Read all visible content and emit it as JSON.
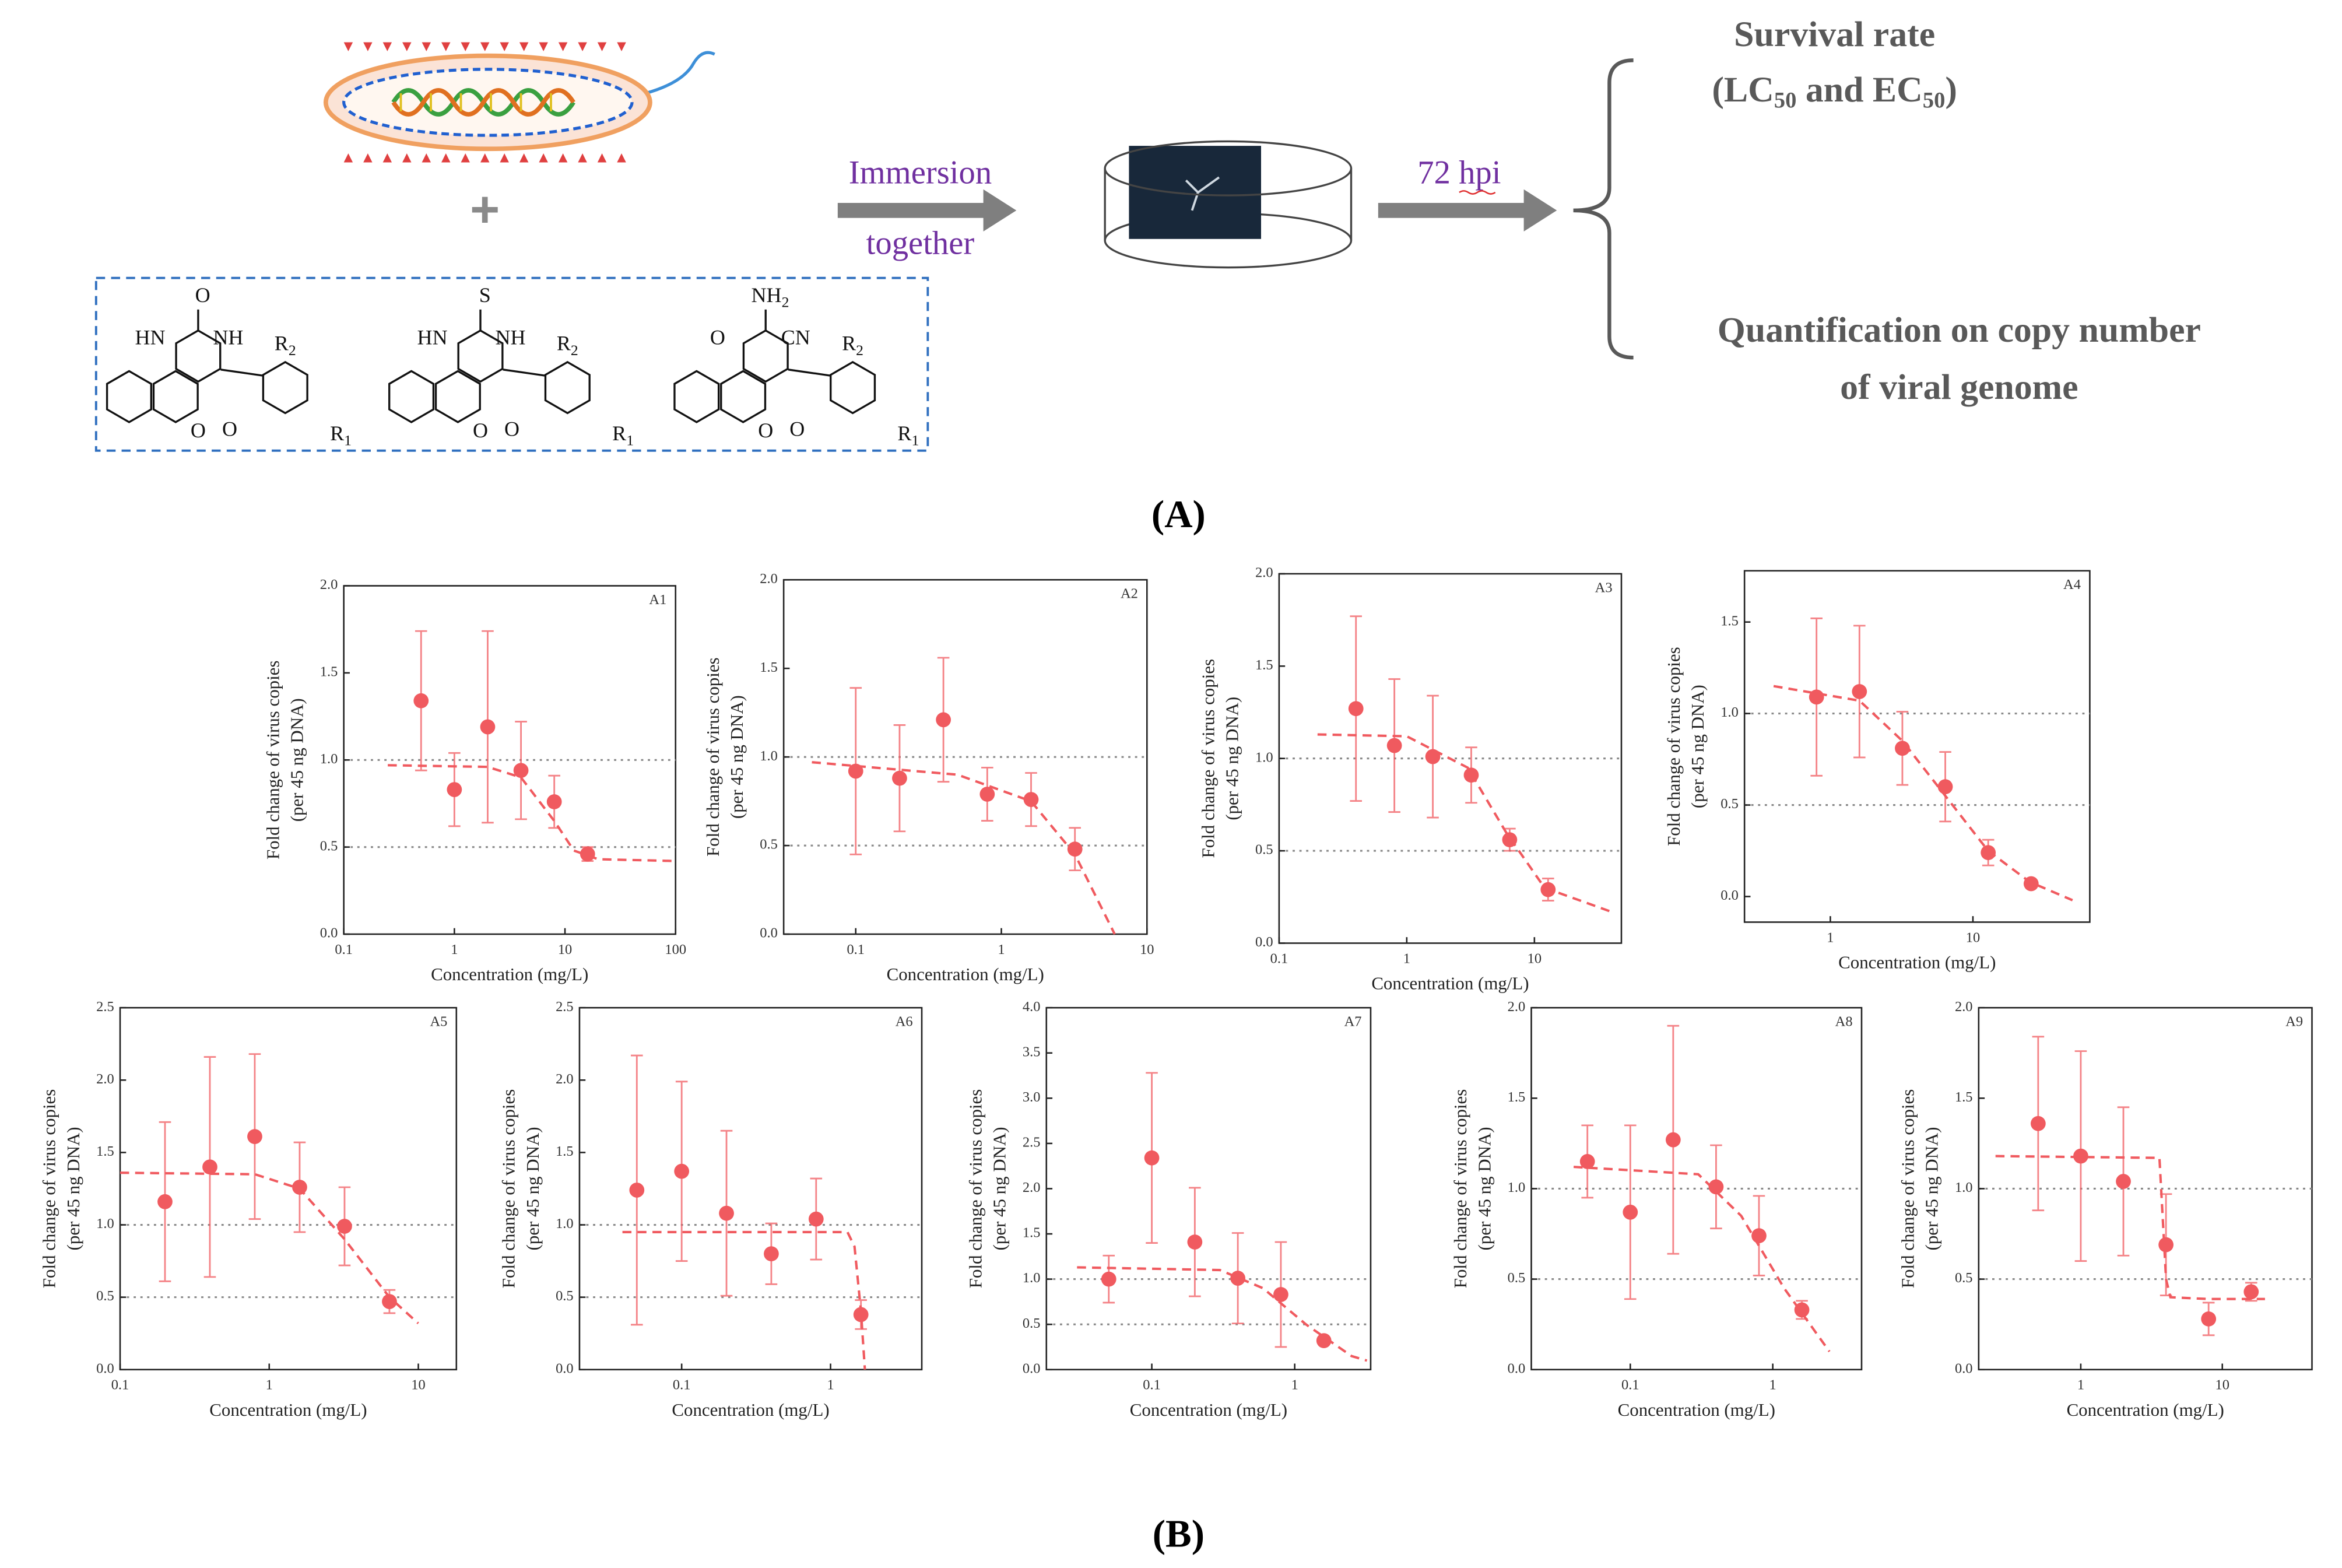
{
  "panel_a": {
    "step1": "Immersion",
    "step2": "together",
    "time": "72 hpi",
    "out1": "Survival rate",
    "out2": [
      "(LC",
      "50",
      " and EC",
      "50",
      ")"
    ],
    "out3": "Quantification on copy number",
    "out4": "of viral genome",
    "structures": [
      {
        "top": [
          "O",
          ""
        ],
        "left": "HN",
        "right": "NH",
        "ring_o": "O",
        "carbonyl": "O",
        "r2": [
          "R",
          "2"
        ],
        "r1": [
          "R",
          "1"
        ]
      },
      {
        "top": [
          "S",
          ""
        ],
        "left": "HN",
        "right": "NH",
        "ring_o": "O",
        "carbonyl": "O",
        "r2": [
          "R",
          "2"
        ],
        "r1": [
          "R",
          "1"
        ]
      },
      {
        "top": [
          "NH",
          "2"
        ],
        "left": "O",
        "right": "CN",
        "ring_o": "O",
        "carbonyl": "O",
        "r2": [
          "R",
          "2"
        ],
        "r1": [
          "R",
          "1"
        ],
        "top_color": "#1f3fd0",
        "right_color": "#e02020"
      }
    ]
  },
  "label_a": "(A)",
  "label_b": "(B)",
  "chart_data": [
    {
      "type": "scatter",
      "label": "A1",
      "xlabel": "Concentration (mg/L)",
      "ylabel": [
        "Fold change of virus copies",
        "(per 45 ng DNA)"
      ],
      "xscale": "log",
      "color": "#f05a5f",
      "xlim": [
        0.1,
        100
      ],
      "xticks": [
        0.1,
        1,
        10,
        100
      ],
      "ylim": [
        0,
        2
      ],
      "yticks": [
        {
          "value": 0,
          "label": "0.0"
        },
        0.5,
        {
          "value": 1,
          "label": "1.0"
        },
        1.5,
        {
          "value": 2,
          "label": "2.0"
        }
      ],
      "x": [
        0.5,
        1,
        2,
        4,
        8,
        16
      ],
      "values": [
        1.34,
        0.83,
        1.19,
        0.94,
        0.76,
        0.46
      ],
      "errors": [
        0.4,
        0.21,
        0.55,
        0.28,
        0.15,
        0.04
      ],
      "fit_x": [
        0.25,
        2,
        4,
        8,
        12,
        20,
        100
      ],
      "fit_y": [
        0.97,
        0.96,
        0.9,
        0.65,
        0.48,
        0.43,
        0.42
      ],
      "ref_lines": [
        0.5,
        1
      ]
    },
    {
      "type": "scatter",
      "label": "A2",
      "xlabel": "Concentration (mg/L)",
      "ylabel": [
        "Fold change of virus copies",
        "(per 45 ng DNA)"
      ],
      "xscale": "log",
      "color": "#f05a5f",
      "xlim": [
        0.032,
        10
      ],
      "xticks": [
        0.1,
        1,
        10
      ],
      "ylim": [
        0,
        2
      ],
      "yticks": [
        {
          "value": 0,
          "label": "0.0"
        },
        0.5,
        {
          "value": 1,
          "label": "1.0"
        },
        1.5,
        {
          "value": 2,
          "label": "2.0"
        }
      ],
      "x": [
        0.1,
        0.2,
        0.4,
        0.8,
        1.6,
        3.2
      ],
      "values": [
        0.92,
        0.88,
        1.21,
        0.79,
        0.76,
        0.48
      ],
      "errors": [
        0.47,
        0.3,
        0.35,
        0.15,
        0.15,
        0.12
      ],
      "fit_x": [
        0.05,
        0.5,
        1.6,
        3.2,
        6
      ],
      "fit_y": [
        0.97,
        0.9,
        0.75,
        0.45,
        0
      ],
      "ref_lines": [
        0.5,
        1
      ]
    },
    {
      "type": "scatter",
      "label": "A3",
      "xlabel": "Concentration (mg/L)",
      "ylabel": [
        "Fold change of virus copies",
        "(per 45 ng DNA)"
      ],
      "xscale": "log",
      "color": "#f05a5f",
      "xlim": [
        0.1,
        48
      ],
      "xticks": [
        0.1,
        1,
        10
      ],
      "ylim": [
        0,
        2
      ],
      "yticks": [
        {
          "value": 0,
          "label": "0.0"
        },
        0.5,
        {
          "value": 1,
          "label": "1.0"
        },
        1.5,
        {
          "value": 2,
          "label": "2.0"
        }
      ],
      "x": [
        0.4,
        0.8,
        1.6,
        3.2,
        6.4,
        12.8
      ],
      "values": [
        1.27,
        1.07,
        1.01,
        0.91,
        0.56,
        0.29
      ],
      "errors": [
        0.5,
        0.36,
        0.33,
        0.15,
        0.06,
        0.06
      ],
      "fit_x": [
        0.2,
        1,
        3,
        6,
        12,
        40
      ],
      "fit_y": [
        1.13,
        1.12,
        0.95,
        0.6,
        0.3,
        0.17
      ],
      "ref_lines": [
        0.5,
        1
      ]
    },
    {
      "type": "scatter",
      "label": "A4",
      "xlabel": "Concentration (mg/L)",
      "ylabel": [
        "Fold change of virus copies",
        "(per 45 ng DNA)"
      ],
      "xscale": "log",
      "color": "#f05a5f",
      "xlim": [
        0.25,
        66
      ],
      "xticks": [
        1,
        10
      ],
      "ylim": [
        -0.14,
        1.78
      ],
      "yticks": [
        {
          "value": 0,
          "label": "0.0"
        },
        0.5,
        {
          "value": 1,
          "label": "1.0"
        },
        1.5
      ],
      "x": [
        0.8,
        1.6,
        3.2,
        6.4,
        12.8,
        25.6
      ],
      "values": [
        1.09,
        1.12,
        0.81,
        0.6,
        0.24,
        0.07
      ],
      "errors": [
        0.43,
        0.36,
        0.2,
        0.19,
        0.07,
        0.02
      ],
      "fit_x": [
        0.4,
        1.6,
        3.2,
        6.4,
        12.8,
        25,
        50
      ],
      "fit_y": [
        1.15,
        1.07,
        0.85,
        0.55,
        0.25,
        0.08,
        -0.02
      ],
      "ref_lines": [
        0.5,
        1
      ]
    },
    {
      "type": "scatter",
      "label": "A5",
      "xlabel": "Concentration (mg/L)",
      "ylabel": [
        "Fold change of virus copies",
        "(per 45 ng DNA)"
      ],
      "xscale": "log",
      "color": "#f05a5f",
      "xlim": [
        0.1,
        18
      ],
      "xticks": [
        0.1,
        1,
        10
      ],
      "ylim": [
        0,
        2.5
      ],
      "yticks": [
        {
          "value": 0,
          "label": "0.0"
        },
        0.5,
        {
          "value": 1,
          "label": "1.0"
        },
        1.5,
        {
          "value": 2,
          "label": "2.0"
        },
        2.5
      ],
      "x": [
        0.2,
        0.4,
        0.8,
        1.6,
        3.2,
        6.4
      ],
      "values": [
        1.16,
        1.4,
        1.61,
        1.26,
        0.99,
        0.47
      ],
      "errors": [
        0.55,
        0.76,
        0.57,
        0.31,
        0.27,
        0.08
      ],
      "fit_x": [
        0.1,
        0.8,
        1.6,
        3.2,
        6.4,
        10
      ],
      "fit_y": [
        1.36,
        1.35,
        1.25,
        0.9,
        0.5,
        0.32
      ],
      "ref_lines": [
        0.5,
        1
      ]
    },
    {
      "type": "scatter",
      "label": "A6",
      "xlabel": "Concentration (mg/L)",
      "ylabel": [
        "Fold change of virus copies",
        "(per 45 ng DNA)"
      ],
      "xscale": "log",
      "color": "#f05a5f",
      "xlim": [
        0.0206,
        4.1
      ],
      "xticks": [
        0.1,
        1
      ],
      "ylim": [
        0,
        2.5
      ],
      "yticks": [
        {
          "value": 0,
          "label": "0.0"
        },
        0.5,
        {
          "value": 1,
          "label": "1.0"
        },
        1.5,
        {
          "value": 2,
          "label": "2.0"
        },
        2.5
      ],
      "x": [
        0.05,
        0.1,
        0.2,
        0.4,
        0.8,
        1.6
      ],
      "values": [
        1.24,
        1.37,
        1.08,
        0.8,
        1.04,
        0.38
      ],
      "errors": [
        0.93,
        0.62,
        0.57,
        0.21,
        0.28,
        0.1
      ],
      "fit_x": [
        0.04,
        1.3,
        1.45,
        1.6,
        1.7
      ],
      "fit_y": [
        0.95,
        0.95,
        0.85,
        0.4,
        0
      ],
      "ref_lines": [
        0.5,
        1
      ]
    },
    {
      "type": "scatter",
      "label": "A7",
      "xlabel": "Concentration (mg/L)",
      "ylabel": [
        "Fold change of virus copies",
        "(per 45 ng DNA)"
      ],
      "xscale": "log",
      "color": "#f05a5f",
      "xlim": [
        0.0183,
        3.4
      ],
      "xticks": [
        0.1,
        1
      ],
      "ylim": [
        0,
        4
      ],
      "yticks": [
        {
          "value": 0,
          "label": "0.0"
        },
        0.5,
        {
          "value": 1,
          "label": "1.0"
        },
        1.5,
        {
          "value": 2,
          "label": "2.0"
        },
        2.5,
        {
          "value": 3,
          "label": "3.0"
        },
        3.5,
        {
          "value": 4,
          "label": "4.0"
        }
      ],
      "x": [
        0.05,
        0.1,
        0.2,
        0.4,
        0.8,
        1.6
      ],
      "values": [
        1.0,
        2.34,
        1.41,
        1.01,
        0.83,
        0.32
      ],
      "errors": [
        0.26,
        0.94,
        0.6,
        0.5,
        0.58,
        0.03
      ],
      "fit_x": [
        0.03,
        0.3,
        0.6,
        1.2,
        2.5,
        3.2
      ],
      "fit_y": [
        1.13,
        1.1,
        0.9,
        0.5,
        0.15,
        0.1
      ],
      "ref_lines": [
        0.5,
        1
      ]
    },
    {
      "type": "scatter",
      "label": "A8",
      "xlabel": "Concentration (mg/L)",
      "ylabel": [
        "Fold change of virus copies",
        "(per 45 ng DNA)"
      ],
      "xscale": "log",
      "color": "#f05a5f",
      "xlim": [
        0.0202,
        4.2
      ],
      "xticks": [
        0.1,
        1
      ],
      "ylim": [
        0,
        2
      ],
      "yticks": [
        {
          "value": 0,
          "label": "0.0"
        },
        0.5,
        {
          "value": 1,
          "label": "1.0"
        },
        1.5,
        {
          "value": 2,
          "label": "2.0"
        }
      ],
      "x": [
        0.05,
        0.1,
        0.2,
        0.4,
        0.8,
        1.6
      ],
      "values": [
        1.15,
        0.87,
        1.27,
        1.01,
        0.74,
        0.33
      ],
      "errors": [
        0.2,
        0.48,
        0.63,
        0.23,
        0.22,
        0.05
      ],
      "fit_x": [
        0.04,
        0.3,
        0.6,
        1.2,
        2.5
      ],
      "fit_y": [
        1.12,
        1.08,
        0.85,
        0.45,
        0.1
      ],
      "ref_lines": [
        0.5,
        1
      ]
    },
    {
      "type": "scatter",
      "label": "A9",
      "xlabel": "Concentration (mg/L)",
      "ylabel": [
        "Fold change of virus copies",
        "(per 45 ng DNA)"
      ],
      "xscale": "log",
      "color": "#f05a5f",
      "xlim": [
        0.19,
        43
      ],
      "xticks": [
        1,
        10
      ],
      "ylim": [
        0,
        2
      ],
      "yticks": [
        {
          "value": 0,
          "label": "0.0"
        },
        0.5,
        {
          "value": 1,
          "label": "1.0"
        },
        1.5,
        {
          "value": 2,
          "label": "2.0"
        }
      ],
      "x": [
        0.5,
        1,
        2,
        4,
        8,
        16
      ],
      "values": [
        1.36,
        1.18,
        1.04,
        0.69,
        0.28,
        0.43
      ],
      "errors": [
        0.48,
        0.58,
        0.41,
        0.28,
        0.09,
        0.05
      ],
      "fit_x": [
        0.25,
        3.6,
        4,
        4.3,
        8,
        20
      ],
      "fit_y": [
        1.18,
        1.17,
        0.5,
        0.4,
        0.39,
        0.39
      ],
      "ref_lines": [
        0.5,
        1
      ]
    }
  ]
}
